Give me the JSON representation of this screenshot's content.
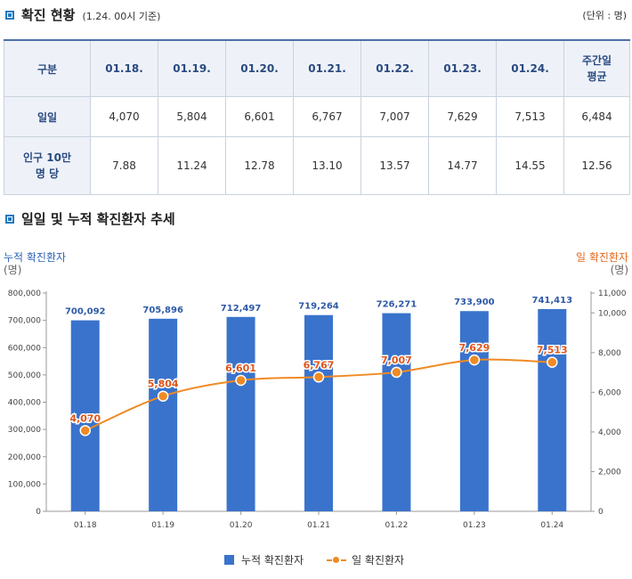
{
  "section1": {
    "title": "확진 현황",
    "subtitle": "(1.24. 00시 기준)",
    "unit": "(단위 : 명)"
  },
  "table": {
    "header": [
      "구분",
      "01.18.",
      "01.19.",
      "01.20.",
      "01.21.",
      "01.22.",
      "01.23.",
      "01.24."
    ],
    "weekly_avg_label": "주간일 평균",
    "rows": [
      {
        "label": "일일",
        "values": [
          "4,070",
          "5,804",
          "6,601",
          "6,767",
          "7,007",
          "7,629",
          "7,513",
          "6,484"
        ]
      },
      {
        "label": "인구 10만 명 당",
        "values": [
          "7.88",
          "11.24",
          "12.78",
          "13.10",
          "13.57",
          "14.77",
          "14.55",
          "12.56"
        ]
      }
    ]
  },
  "section2": {
    "title": "일일 및 누적 확진환자 추세"
  },
  "chart_data": {
    "type": "bar",
    "title": "일일 및 누적 확진환자 추세",
    "categories": [
      "01.18",
      "01.19",
      "01.20",
      "01.21",
      "01.22",
      "01.23",
      "01.24"
    ],
    "left_axis": {
      "label": "누적 확진환자",
      "unit": "(명)",
      "ylim": [
        0,
        800000
      ],
      "ticks": [
        "0",
        "100,000",
        "200,000",
        "300,000",
        "400,000",
        "500,000",
        "600,000",
        "700,000",
        "800,000"
      ]
    },
    "right_axis": {
      "label": "일 확진환자",
      "unit": "(명)",
      "ylim": [
        0,
        11000
      ],
      "ticks": [
        "0",
        "2,000",
        "4,000",
        "6,000",
        "8,000",
        "10,000",
        "11,000"
      ]
    },
    "series": [
      {
        "name": "누적 확진환자",
        "kind": "bar",
        "axis": "left",
        "color": "#3a73cc",
        "values": [
          700092,
          705896,
          712497,
          719264,
          726271,
          733900,
          741413
        ],
        "labels": [
          "700,092",
          "705,896",
          "712,497",
          "719,264",
          "726,271",
          "733,900",
          "741,413"
        ]
      },
      {
        "name": "일 확진환자",
        "kind": "line",
        "axis": "right",
        "color": "#f08a24",
        "values": [
          4070,
          5804,
          6601,
          6767,
          7007,
          7629,
          7513
        ],
        "labels": [
          "4,070",
          "5,804",
          "6,601",
          "6,767",
          "7,007",
          "7,629",
          "7,513"
        ]
      }
    ],
    "legend": [
      "누적 확진환자",
      "일 확진환자"
    ],
    "legend_position": "bottom"
  }
}
